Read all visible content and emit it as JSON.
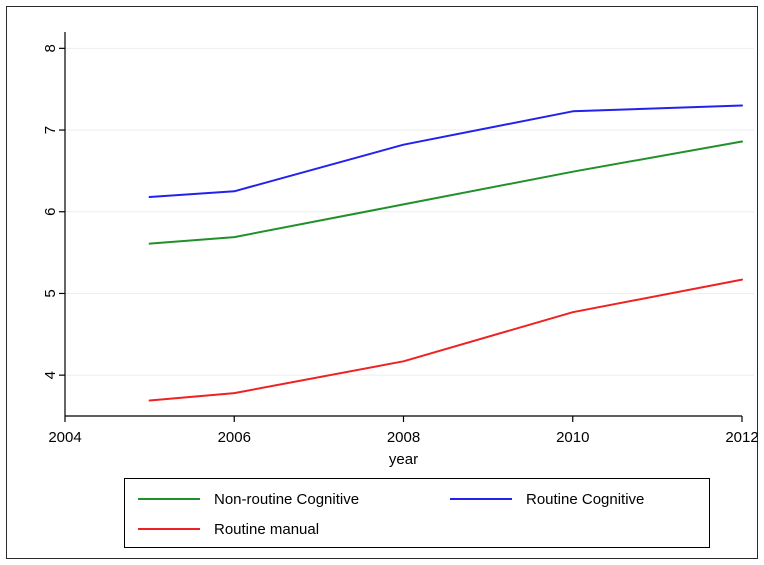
{
  "chart_data": {
    "type": "line",
    "title": "",
    "xlabel": "year",
    "ylabel": "",
    "xlim": [
      2004,
      2012
    ],
    "ylim": [
      3.5,
      8.2
    ],
    "xticks": [
      "2004",
      "2006",
      "2008",
      "2010",
      "2012"
    ],
    "yticks": [
      "4",
      "5",
      "6",
      "7",
      "8"
    ],
    "grid": true,
    "legend_position": "bottom",
    "series": [
      {
        "name": "Non-routine Cognitive",
        "color": "#22902a",
        "x": [
          2005,
          2006,
          2008,
          2010,
          2012
        ],
        "values": [
          5.61,
          5.69,
          6.09,
          6.49,
          6.86
        ]
      },
      {
        "name": "Routine Cognitive",
        "color": "#2222ee",
        "x": [
          2005,
          2006,
          2008,
          2010,
          2012
        ],
        "values": [
          6.18,
          6.25,
          6.82,
          7.23,
          7.3
        ]
      },
      {
        "name": "Routine manual",
        "color": "#ee2222",
        "x": [
          2005,
          2006,
          2008,
          2010,
          2012
        ],
        "values": [
          3.69,
          3.78,
          4.17,
          4.77,
          5.17
        ]
      }
    ]
  }
}
